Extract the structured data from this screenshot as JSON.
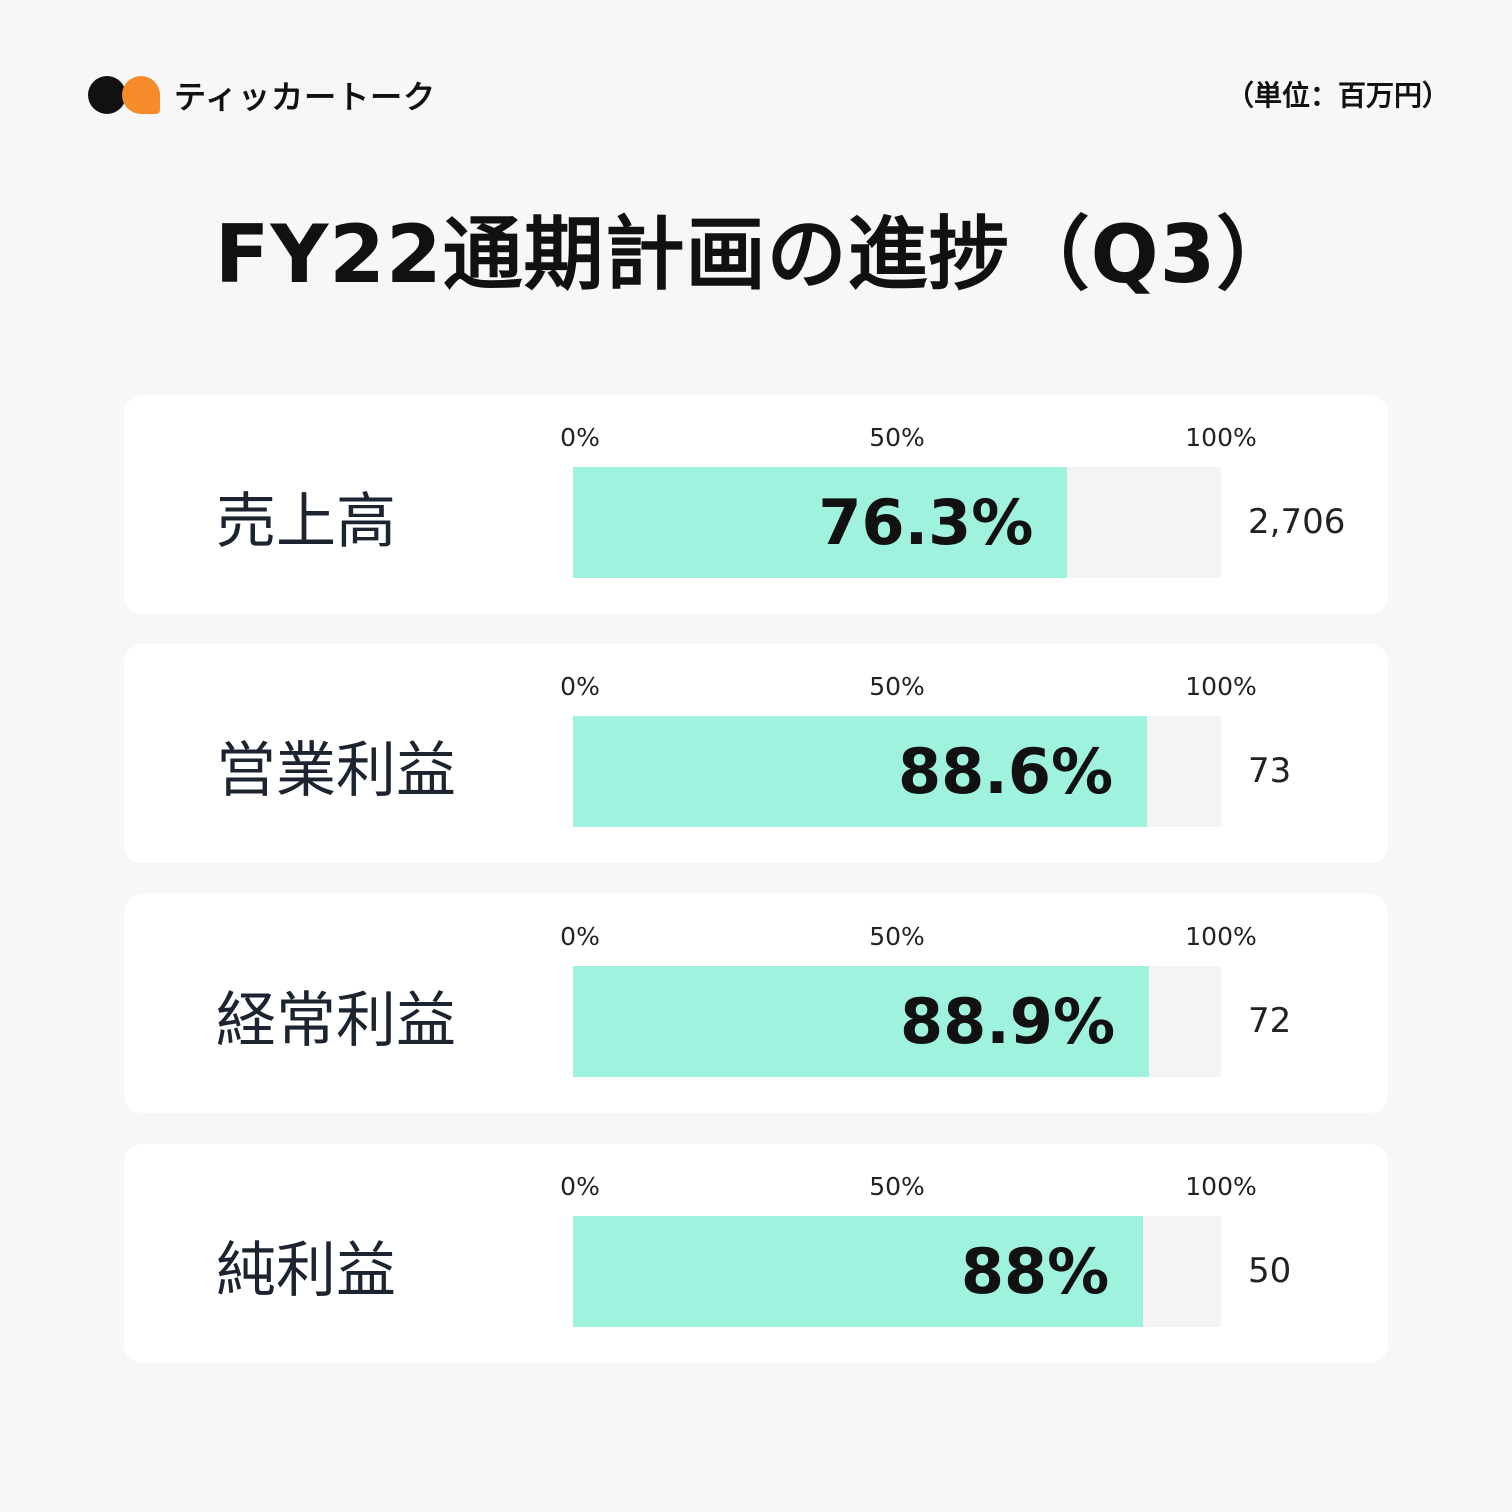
{
  "header": {
    "brand": "ティッカートーク",
    "unit": "（単位：百万円）"
  },
  "chart_data": {
    "type": "bar",
    "title": "FY22通期計画の進捗（Q3）",
    "categories": [
      "売上高",
      "営業利益",
      "経常利益",
      "純利益"
    ],
    "values": [
      76.3,
      88.6,
      88.9,
      88
    ],
    "value_labels": [
      "76.3%",
      "88.6%",
      "88.9%",
      "88%"
    ],
    "amounts": [
      "2,706",
      "73",
      "72",
      "50"
    ],
    "ticks": [
      "0%",
      "50%",
      "100%"
    ],
    "tick_values": [
      0,
      50,
      100
    ],
    "xlim": [
      0,
      100
    ],
    "bar_color": "#9ff3de",
    "track_color": "#f4f4f4"
  }
}
